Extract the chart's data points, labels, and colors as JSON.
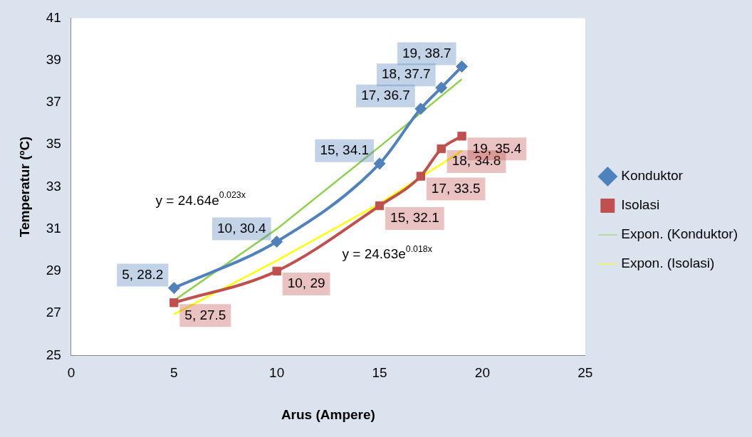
{
  "chart_data": {
    "type": "line",
    "xlabel": "Arus (Ampere)",
    "ylabel": "Temperatur (ºC)",
    "xlim": [
      0,
      25
    ],
    "xticks": [
      0,
      5,
      10,
      15,
      20,
      25
    ],
    "ylim": [
      25,
      41
    ],
    "yticks": [
      25,
      27,
      29,
      31,
      33,
      35,
      37,
      39,
      41
    ],
    "grid": false,
    "legend": "right",
    "line_style": "solid",
    "series": [
      {
        "name": "Konduktor",
        "color": "#4f81bd",
        "marker": "diamond",
        "x": [
          5,
          10,
          15,
          17,
          18,
          19
        ],
        "values": [
          28.2,
          30.4,
          34.1,
          36.7,
          37.7,
          38.7
        ],
        "value_labels": [
          "5, 28.2",
          "10, 30.4",
          "15, 34.1",
          "17, 36.7",
          "18, 37.7",
          "19, 38.7"
        ]
      },
      {
        "name": "Isolasi",
        "color": "#c0504d",
        "marker": "square",
        "x": [
          5,
          10,
          15,
          17,
          18,
          19
        ],
        "values": [
          27.5,
          29,
          32.1,
          33.5,
          34.8,
          35.4
        ],
        "value_labels": [
          "5, 27.5",
          "10, 29",
          "15, 32.1",
          "17, 33.5",
          "18, 34.8",
          "19, 35.4"
        ]
      },
      {
        "name": "Expon. (Konduktor)",
        "color": "#92d050",
        "marker": "none",
        "x": [
          5,
          10,
          15,
          19
        ],
        "values": [
          27.6,
          31.0,
          34.9,
          38.1
        ]
      },
      {
        "name": "Expon. (Isolasi)",
        "color": "#ffff00",
        "marker": "none",
        "x": [
          5,
          10,
          15,
          19
        ],
        "values": [
          26.95,
          29.5,
          32.2,
          34.7
        ]
      }
    ],
    "annotations": [
      "y = 24.64e$^{0.023x}$",
      "y = 24.63e$^{0.018x}$"
    ]
  }
}
